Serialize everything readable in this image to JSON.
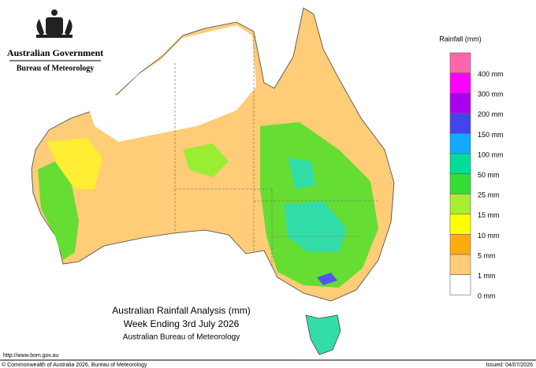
{
  "header": {
    "government": "Australian Government",
    "agency": "Bureau of Meteorology"
  },
  "titles": [
    "Australian Rainfall Analysis (mm)",
    "Week Ending 3rd July 2026",
    "Australian Bureau of Meteorology"
  ],
  "legend": {
    "title": "Rainfall (mm)",
    "top_color": "#ff66aa",
    "items": [
      {
        "label": "400 mm",
        "color": "#ff00ff"
      },
      {
        "label": "300 mm",
        "color": "#aa00ee"
      },
      {
        "label": "200 mm",
        "color": "#4444ee"
      },
      {
        "label": "150 mm",
        "color": "#11aaff"
      },
      {
        "label": "100 mm",
        "color": "#00dd99"
      },
      {
        "label": "50 mm",
        "color": "#33dd33"
      },
      {
        "label": "25 mm",
        "color": "#aaee33"
      },
      {
        "label": "15 mm",
        "color": "#ffff00"
      },
      {
        "label": "10 mm",
        "color": "#ffaa11"
      },
      {
        "label": "5 mm",
        "color": "#ffcc77"
      },
      {
        "label": "1 mm",
        "color": "#ffffff"
      },
      {
        "label": "0 mm",
        "color": "#ffffff"
      }
    ]
  },
  "footer": {
    "url": "http://www.bom.gov.au",
    "copyright": "© Commonwealth of Australia 2026, Bureau of Meteorology",
    "issued": "Issued: 04/07/2026"
  }
}
